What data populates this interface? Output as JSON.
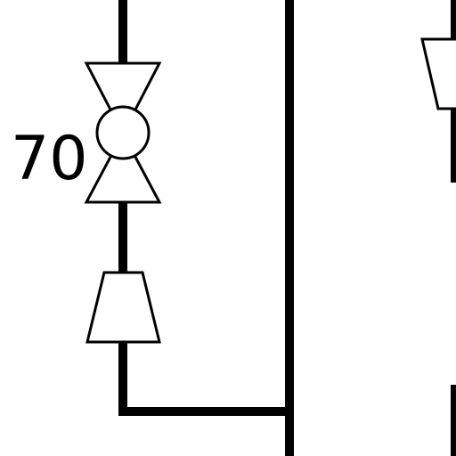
{
  "diagram": {
    "valve_label": "70"
  }
}
